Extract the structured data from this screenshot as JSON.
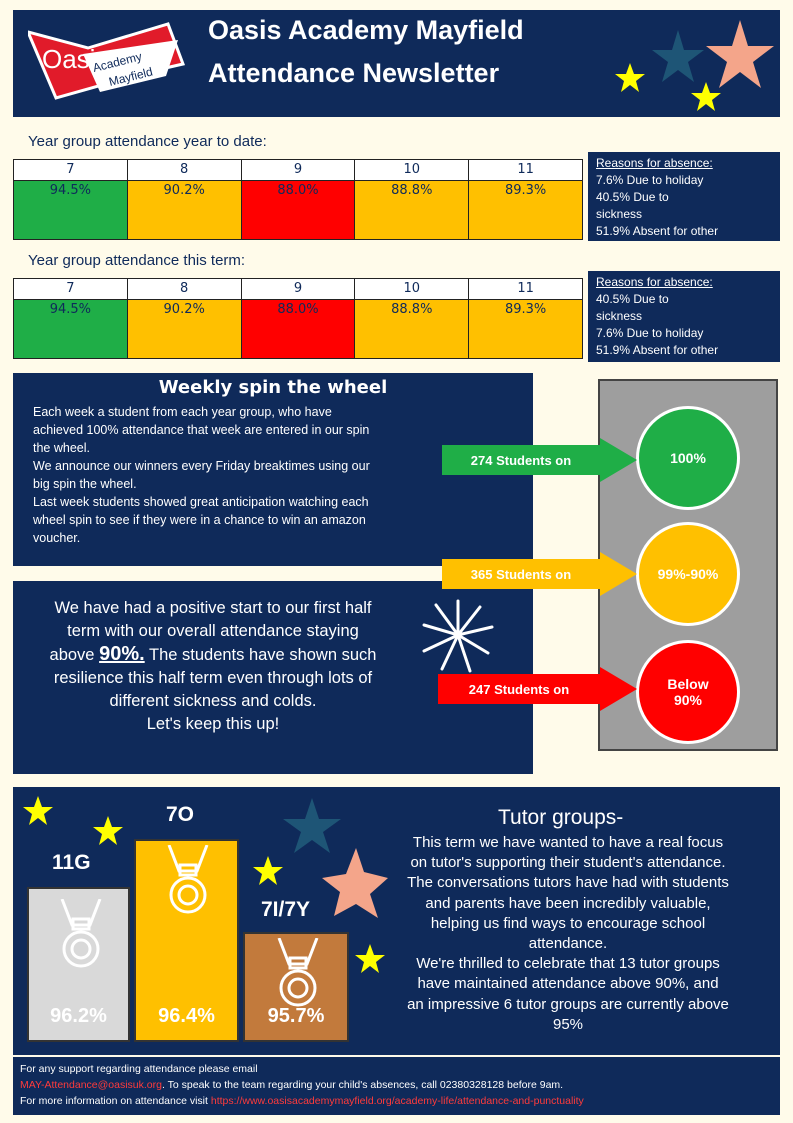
{
  "header": {
    "logo_main": "Oasis",
    "logo_sub1": "Academy",
    "logo_sub2": "Mayfield",
    "title_line1": "Oasis Academy Mayfield",
    "title_line2": "Attendance Newsletter",
    "star_colors": [
      "#ffff00",
      "#1e5576",
      "#f4a58a"
    ]
  },
  "ytd": {
    "title": "Year group attendance year to date:",
    "years": [
      "7",
      "8",
      "9",
      "10",
      "11"
    ],
    "values": [
      "94.5%",
      "90.2%",
      "88.0%",
      "88.8%",
      "89.3%"
    ],
    "reasons_title": "Reasons for absence:",
    "reasons": [
      "7.6% Due to holiday",
      "40.5% Due to",
      "sickness",
      "51.9% Absent for other"
    ]
  },
  "term": {
    "title": "Year group attendance this term:",
    "years": [
      "7",
      "8",
      "9",
      "10",
      "11"
    ],
    "values": [
      "94.5%",
      "90.2%",
      "88.0%",
      "88.8%",
      "89.3%"
    ],
    "reasons_title": "Reasons for absence:",
    "reasons": [
      "40.5% Due to",
      "sickness",
      "7.6% Due to holiday",
      "51.9% Absent for other"
    ]
  },
  "spin": {
    "title": "Weekly spin the wheel",
    "lines": [
      "Each week a student from each year group, who have",
      "achieved 100% attendance that week are entered in our spin",
      "the wheel.",
      "We announce our winners every Friday breaktimes using our",
      "big spin the wheel.",
      "Last week students showed great anticipation watching each",
      "wheel spin to see if they were in a chance to win an amazon",
      "voucher."
    ]
  },
  "positive": {
    "line1": "We have had a positive start to our first half",
    "line2": "term with our overall attendance staying",
    "line3a": "above",
    "line3b": "90%.",
    "line3c": "The students have shown such",
    "line4": "resilience this half term even through lots of",
    "line5": "different sickness and colds.",
    "line6": "Let's keep this up!"
  },
  "traffic": {
    "green_label": "100%",
    "amber_label": "99%-90%",
    "red_label_1": "Below",
    "red_label_2": "90%",
    "green_arrow": "274 Students on",
    "amber_arrow": "365 Students on",
    "red_arrow": "247 Students on"
  },
  "tutor": {
    "title": "Tutor groups-",
    "lines": [
      "This term we have wanted to have a real focus",
      "on tutor's supporting their student's attendance.",
      "The conversations tutors have had with students",
      "and parents have been incredibly valuable,",
      "helping us find ways to encourage school",
      "attendance.",
      "We're thrilled to celebrate that 13 tutor groups",
      "have maintained attendance above 90%, and",
      "an impressive 6 tutor groups are currently above",
      "95%"
    ],
    "podium": [
      {
        "label": "11G",
        "pct": "96.2%",
        "color": "#d9d9d9"
      },
      {
        "label": "7O",
        "pct": "96.4%",
        "color": "#ffc000"
      },
      {
        "label": "7I/7Y",
        "pct": "95.7%",
        "color": "#c27a3c"
      }
    ]
  },
  "footer": {
    "line1": "For any support regarding attendance please email",
    "email": "MAY-Attendance@oasisuk.org",
    "line2_rest": ". To speak to the team regarding your child's absences, call 02380328128 before 9am.",
    "line3": "For more information on attendance visit",
    "url": "https://www.oasisacademymayfield.org/academy-life/attendance-and-punctuality"
  }
}
